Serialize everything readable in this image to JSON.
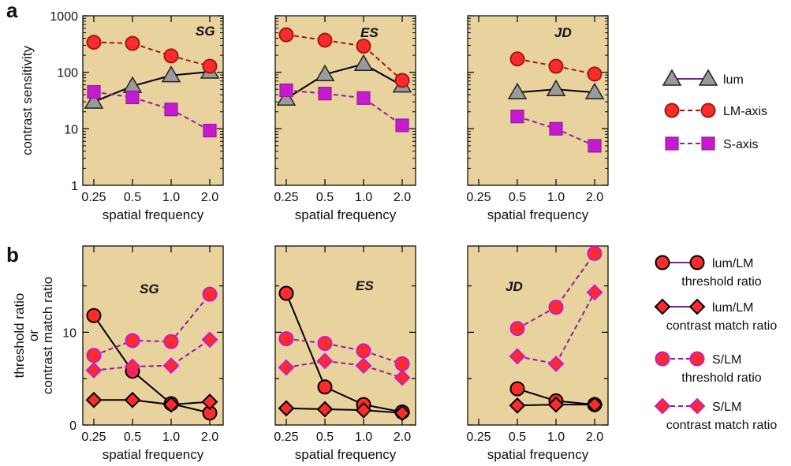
{
  "colors": {
    "panel_bg": "#e8d29d",
    "lum_line": "#000000",
    "lum_marker": "#9a9a9a",
    "lm_line": "#a01818",
    "lm_marker": "#ff2a2a",
    "s_line": "#8e1f9e",
    "s_marker": "#c61ad0",
    "legend_lum_line": "#6a2a8a"
  },
  "icons": {
    "triangle": "triangle-marker",
    "circle": "circle-marker",
    "square": "square-marker",
    "diamond": "diamond-marker"
  },
  "chart_data": [
    {
      "panel": "a",
      "type": "line",
      "yscale": "log",
      "ylim": [
        1,
        1000
      ],
      "yticks": [
        "1",
        "10",
        "100",
        "1000"
      ],
      "ylabel": "contrast sensitivity",
      "xlabel": "spatial frequency",
      "xticks": [
        "0.25",
        "0.5",
        "1.0",
        "2.0"
      ],
      "legend": [
        {
          "label": "lum",
          "key": "lum",
          "marker": "triangle"
        },
        {
          "label": "LM-axis",
          "key": "lm",
          "marker": "circle"
        },
        {
          "label": "S-axis",
          "key": "s",
          "marker": "square"
        }
      ],
      "subplots": [
        {
          "subject": "SG",
          "series": [
            {
              "key": "lum",
              "marker": "triangle",
              "dashed": false,
              "x": [
                0.25,
                0.5,
                1.0,
                2.0
              ],
              "values": [
                30,
                57,
                88,
                102
              ]
            },
            {
              "key": "lm",
              "marker": "circle",
              "dashed": true,
              "x": [
                0.25,
                0.5,
                1.0,
                2.0
              ],
              "values": [
                340,
                325,
                195,
                128
              ]
            },
            {
              "key": "s",
              "marker": "square",
              "dashed": true,
              "x": [
                0.25,
                0.5,
                1.0,
                2.0
              ],
              "values": [
                45,
                36,
                22,
                9.3
              ]
            }
          ]
        },
        {
          "subject": "ES",
          "series": [
            {
              "key": "lum",
              "marker": "triangle",
              "dashed": false,
              "x": [
                0.25,
                0.5,
                1.0,
                2.0
              ],
              "values": [
                34,
                92,
                140,
                58
              ]
            },
            {
              "key": "lm",
              "marker": "circle",
              "dashed": true,
              "x": [
                0.25,
                0.5,
                1.0,
                2.0
              ],
              "values": [
                460,
                370,
                290,
                72
              ]
            },
            {
              "key": "s",
              "marker": "square",
              "dashed": true,
              "x": [
                0.25,
                0.5,
                1.0,
                2.0
              ],
              "values": [
                48,
                42,
                35,
                11.5
              ]
            }
          ]
        },
        {
          "subject": "JD",
          "series": [
            {
              "key": "lum",
              "marker": "triangle",
              "dashed": false,
              "x": [
                0.5,
                1.0,
                2.0
              ],
              "values": [
                44,
                50,
                44
              ]
            },
            {
              "key": "lm",
              "marker": "circle",
              "dashed": true,
              "x": [
                0.5,
                1.0,
                2.0
              ],
              "values": [
                172,
                128,
                93
              ]
            },
            {
              "key": "s",
              "marker": "square",
              "dashed": true,
              "x": [
                0.5,
                1.0,
                2.0
              ],
              "values": [
                16.5,
                10,
                5
              ]
            }
          ]
        }
      ]
    },
    {
      "panel": "b",
      "type": "line",
      "yscale": "linear",
      "ylim": [
        0,
        19.3
      ],
      "yticks": [
        "0",
        "10"
      ],
      "ylabel": [
        "threshold ratio",
        "or",
        "contrast match ratio"
      ],
      "xlabel": "spatial frequency",
      "xticks": [
        "0.25",
        "0.5",
        "1.0",
        "2.0"
      ],
      "legend": [
        {
          "label": [
            "lum/LM",
            "threshold ratio"
          ],
          "key": "lum",
          "marker": "circle"
        },
        {
          "label": [
            "lum/LM",
            "contrast match ratio"
          ],
          "key": "lum",
          "marker": "diamond"
        },
        {
          "label": [
            "S/LM",
            "threshold ratio"
          ],
          "key": "s",
          "marker": "circle"
        },
        {
          "label": [
            "S/LM",
            "contrast match ratio"
          ],
          "key": "s",
          "marker": "diamond"
        }
      ],
      "subplots": [
        {
          "subject": "SG",
          "series": [
            {
              "key": "lum",
              "marker": "circle",
              "dashed": false,
              "x": [
                0.25,
                0.5,
                1.0,
                2.0
              ],
              "values": [
                11.8,
                5.8,
                2.3,
                1.3
              ]
            },
            {
              "key": "lum",
              "marker": "diamond",
              "dashed": false,
              "x": [
                0.25,
                0.5,
                1.0,
                2.0
              ],
              "values": [
                2.7,
                2.7,
                2.2,
                2.5
              ]
            },
            {
              "key": "s",
              "marker": "circle",
              "dashed": true,
              "x": [
                0.25,
                0.5,
                1.0,
                2.0
              ],
              "values": [
                7.5,
                9.1,
                9.0,
                14.1
              ]
            },
            {
              "key": "s",
              "marker": "diamond",
              "dashed": true,
              "x": [
                0.25,
                0.5,
                1.0,
                2.0
              ],
              "values": [
                5.9,
                6.3,
                6.4,
                9.2
              ]
            }
          ]
        },
        {
          "subject": "ES",
          "series": [
            {
              "key": "lum",
              "marker": "circle",
              "dashed": false,
              "x": [
                0.25,
                0.5,
                1.0,
                2.0
              ],
              "values": [
                14.2,
                4.1,
                2.2,
                1.4
              ]
            },
            {
              "key": "lum",
              "marker": "diamond",
              "dashed": false,
              "x": [
                0.25,
                0.5,
                1.0,
                2.0
              ],
              "values": [
                1.8,
                1.7,
                1.6,
                1.3
              ]
            },
            {
              "key": "s",
              "marker": "circle",
              "dashed": true,
              "x": [
                0.25,
                0.5,
                1.0,
                2.0
              ],
              "values": [
                9.3,
                8.8,
                8.0,
                6.6
              ]
            },
            {
              "key": "s",
              "marker": "diamond",
              "dashed": true,
              "x": [
                0.25,
                0.5,
                1.0,
                2.0
              ],
              "values": [
                6.2,
                6.9,
                6.4,
                5.1
              ]
            }
          ]
        },
        {
          "subject": "JD",
          "series": [
            {
              "key": "lum",
              "marker": "circle",
              "dashed": false,
              "x": [
                0.5,
                1.0,
                2.0
              ],
              "values": [
                3.9,
                2.6,
                2.2
              ]
            },
            {
              "key": "lum",
              "marker": "diamond",
              "dashed": false,
              "x": [
                0.5,
                1.0,
                2.0
              ],
              "values": [
                2.1,
                2.2,
                2.2
              ]
            },
            {
              "key": "s",
              "marker": "circle",
              "dashed": true,
              "x": [
                0.5,
                1.0,
                2.0
              ],
              "values": [
                10.4,
                12.7,
                18.5
              ]
            },
            {
              "key": "s",
              "marker": "diamond",
              "dashed": true,
              "x": [
                0.5,
                1.0,
                2.0
              ],
              "values": [
                7.4,
                6.6,
                14.3
              ]
            }
          ]
        }
      ]
    }
  ]
}
